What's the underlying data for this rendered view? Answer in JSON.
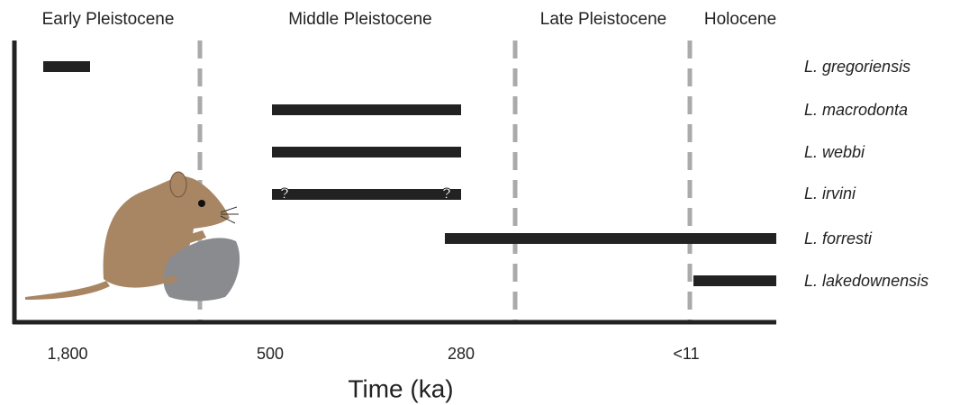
{
  "periods": [
    "Early Pleistocene",
    "Middle Pleistocene",
    "Late Pleistocene",
    "Holocene"
  ],
  "species": [
    "L. gregoriensis",
    "L. macrodonta",
    "L. webbi",
    "L. irvini",
    "L. forresti",
    "L. lakedownensis"
  ],
  "uncertainty_marks": [
    "?",
    "?"
  ],
  "x_axis": {
    "ticks": [
      "1,800",
      "500",
      "280",
      "<11"
    ],
    "title": "Time (ka)"
  }
}
